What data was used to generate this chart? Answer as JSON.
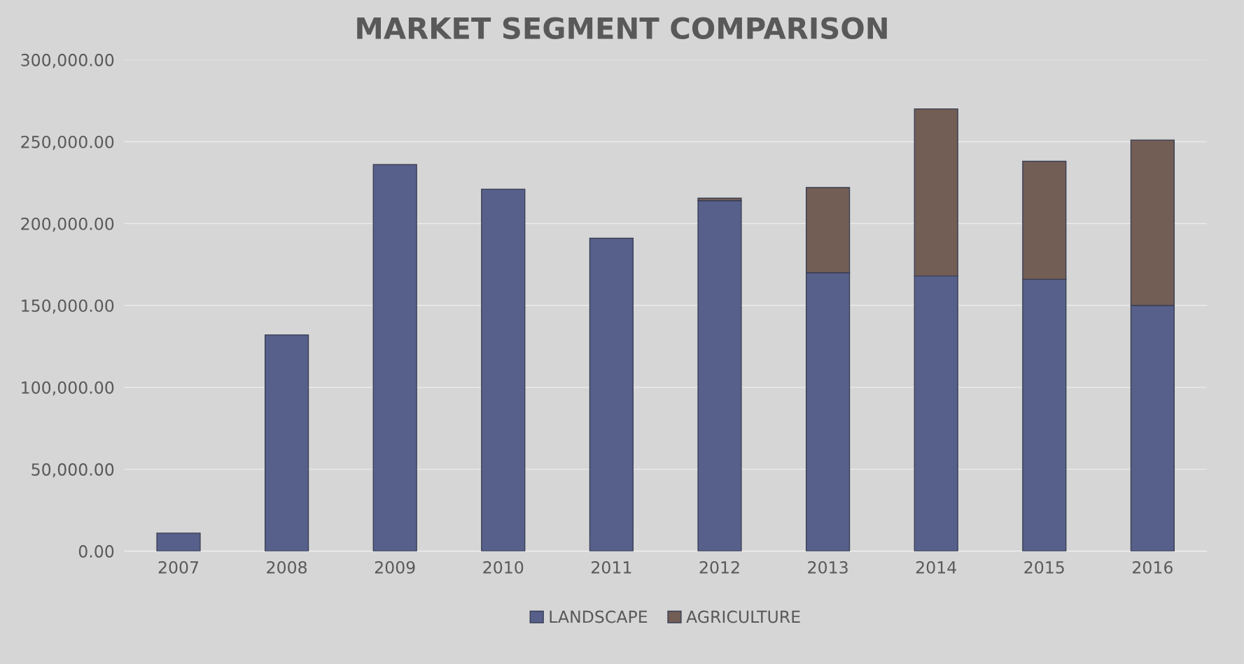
{
  "chart_data": {
    "type": "bar",
    "title": "MARKET SEGMENT COMPARISON",
    "categories": [
      "2007",
      "2008",
      "2009",
      "2010",
      "2011",
      "2012",
      "2013",
      "2014",
      "2015",
      "2016"
    ],
    "series": [
      {
        "name": "LANDSCAPE",
        "color": "#56608a",
        "values": [
          11000,
          132000,
          236000,
          221000,
          191000,
          214000,
          170000,
          168000,
          166000,
          150000
        ]
      },
      {
        "name": "AGRICULTURE",
        "color": "#735e55",
        "values": [
          null,
          null,
          null,
          null,
          null,
          1500,
          52000,
          102000,
          72000,
          101000
        ]
      }
    ],
    "stacked": true,
    "ylim": [
      0,
      300000
    ],
    "yticks": [
      {
        "value": 0,
        "label": "0.00"
      },
      {
        "value": 50000,
        "label": "50,000.00"
      },
      {
        "value": 100000,
        "label": "100,000.00"
      },
      {
        "value": 150000,
        "label": "150,000.00"
      },
      {
        "value": 200000,
        "label": "200,000.00"
      },
      {
        "value": 250000,
        "label": "250,000.00"
      },
      {
        "value": 300000,
        "label": "300,000.00"
      }
    ],
    "grid": "y",
    "legend": "bottom"
  }
}
